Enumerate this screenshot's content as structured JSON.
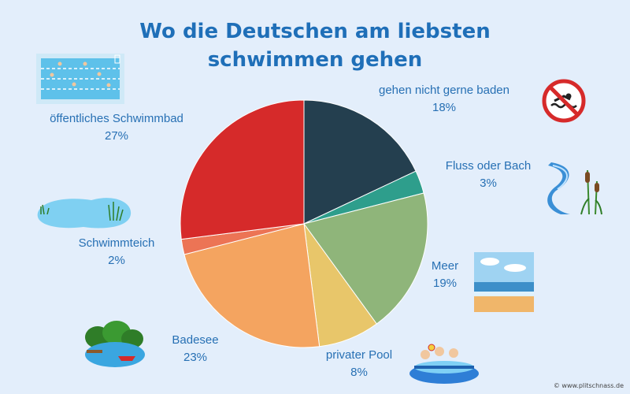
{
  "credit": "© www.plitschnass.de",
  "chart_data": {
    "type": "pie",
    "title": "Wo die Deutschen am liebsten schwimmen gehen",
    "title_lines": [
      "Wo die Deutschen am liebsten",
      "schwimmen gehen"
    ],
    "slices": [
      {
        "label": "gehen nicht gerne baden",
        "value": 18,
        "display": "18%",
        "color": "#243f4f",
        "icon": "no-swimming-sign-icon"
      },
      {
        "label": "Fluss oder Bach",
        "value": 3,
        "display": "3%",
        "color": "#2e9e8c",
        "icon": "river-with-reeds-icon"
      },
      {
        "label": "Meer",
        "value": 19,
        "display": "19%",
        "color": "#8fb57a",
        "icon": "sea-beach-icon"
      },
      {
        "label": "privater Pool",
        "value": 8,
        "display": "8%",
        "color": "#e8c66a",
        "icon": "inflatable-pool-kids-icon"
      },
      {
        "label": "Badesee",
        "value": 23,
        "display": "23%",
        "color": "#f4a460",
        "icon": "lake-with-boat-icon"
      },
      {
        "label": "Schwimmteich",
        "value": 2,
        "display": "2%",
        "color": "#ec7455",
        "icon": "pond-with-reeds-icon"
      },
      {
        "label": "öffentliches Schwimmbad",
        "value": 27,
        "display": "27%",
        "color": "#d62a2a",
        "icon": "swimming-pool-icon"
      }
    ]
  }
}
